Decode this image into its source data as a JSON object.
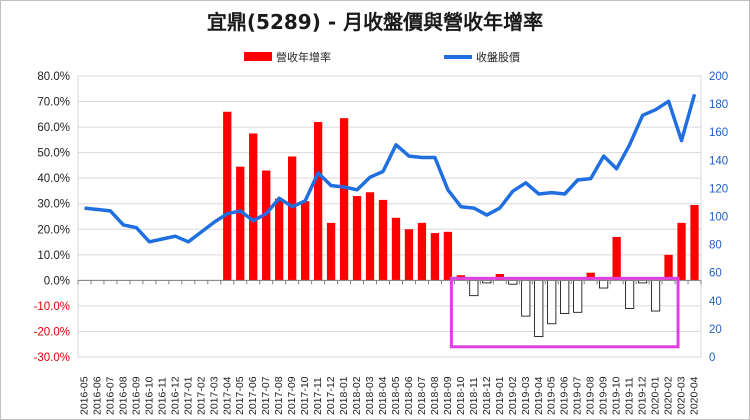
{
  "chart_data": {
    "type": "bar",
    "title": "宜鼎(5289)  - 月收盤價與營收年增率",
    "categories": [
      "2016-05",
      "2016-06",
      "2016-07",
      "2016-08",
      "2016-09",
      "2016-10",
      "2016-11",
      "2016-12",
      "2017-01",
      "2017-02",
      "2017-03",
      "2017-04",
      "2017-05",
      "2017-06",
      "2017-07",
      "2017-08",
      "2017-09",
      "2017-10",
      "2017-11",
      "2017-12",
      "2018-01",
      "2018-02",
      "2018-03",
      "2018-04",
      "2018-05",
      "2018-06",
      "2018-07",
      "2018-08",
      "2018-09",
      "2018-10",
      "2018-11",
      "2018-12",
      "2019-01",
      "2019-02",
      "2019-03",
      "2019-04",
      "2019-05",
      "2019-06",
      "2019-07",
      "2019-08",
      "2019-09",
      "2019-10",
      "2019-11",
      "2019-12",
      "2020-01",
      "2020-02",
      "2020-03",
      "2020-04"
    ],
    "series": [
      {
        "name": "營收年增率",
        "type": "bar",
        "axis": "left",
        "color": "#ff0000",
        "negative_color": "#ffffff",
        "values": [
          null,
          null,
          null,
          null,
          null,
          null,
          null,
          null,
          null,
          null,
          null,
          66.0,
          44.5,
          57.5,
          43.0,
          32.0,
          48.5,
          31.0,
          62.0,
          22.5,
          63.5,
          33.0,
          34.5,
          31.5,
          24.5,
          20.0,
          22.5,
          18.5,
          19.0,
          2.0,
          -6.0,
          -1.0,
          2.5,
          -1.5,
          -14.0,
          -22.0,
          -17.0,
          -13.0,
          -12.5,
          3.0,
          -3.0,
          17.0,
          -11.0,
          -1.0,
          -12.0,
          10.0,
          22.5,
          29.5
        ]
      },
      {
        "name": "收盤股價",
        "type": "line",
        "axis": "right",
        "color": "#1f6fe0",
        "values": [
          106,
          105,
          104,
          94,
          92,
          82,
          84,
          86,
          82,
          89,
          96,
          102,
          104,
          97,
          102,
          113,
          107,
          111,
          131,
          122,
          121,
          119,
          128,
          132,
          151,
          143,
          142,
          142,
          119,
          107,
          106,
          101,
          106,
          118,
          124,
          116,
          117,
          116,
          126,
          127,
          143,
          134,
          151,
          172,
          176,
          182,
          154,
          187
        ]
      }
    ],
    "y_left": {
      "min": -30,
      "max": 80,
      "step": 10,
      "ticks": [
        "80.0%",
        "70.0%",
        "60.0%",
        "50.0%",
        "40.0%",
        "30.0%",
        "20.0%",
        "10.0%",
        "0.0%",
        "-10.0%",
        "-20.0%",
        "-30.0%"
      ]
    },
    "y_right": {
      "min": 0,
      "max": 200,
      "step": 20,
      "ticks": [
        "200",
        "180",
        "160",
        "140",
        "120",
        "100",
        "80",
        "60",
        "40",
        "20",
        "0"
      ]
    },
    "grid": true,
    "legend": "top-center",
    "annotation": {
      "shape": "rectangle",
      "color": "#e040e0",
      "from_category": "2018-10",
      "to_category": "2020-02"
    }
  }
}
